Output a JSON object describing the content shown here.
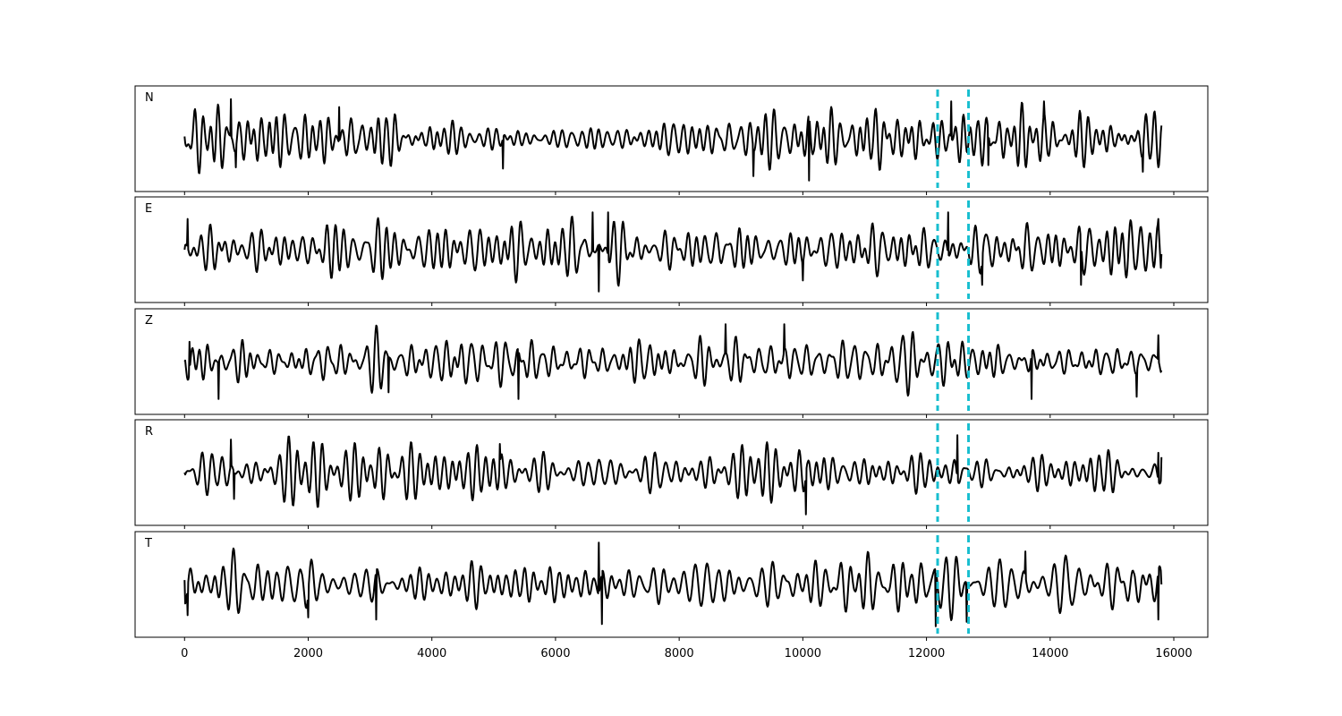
{
  "chart_data": {
    "type": "line",
    "title": "",
    "xlabel": "",
    "ylabel": "",
    "xlim": [
      -800,
      16550
    ],
    "ylim": [
      -1.2,
      1.2
    ],
    "xticks": [
      0,
      2000,
      4000,
      6000,
      8000,
      10000,
      12000,
      14000,
      16000
    ],
    "yticks_shown": false,
    "grid": false,
    "legend": "none",
    "marker_lines": {
      "x": [
        12180,
        12680
      ],
      "color": "#17becf",
      "style": "dashed"
    },
    "trace_color": "#000000",
    "n_points": 15800,
    "channels": [
      {
        "label": "N",
        "seed": 11,
        "samples": [
          {
            "x": 0,
            "y": 0.05
          },
          {
            "x": 750,
            "y": 0.9
          },
          {
            "x": 830,
            "y": -0.65
          },
          {
            "x": 2500,
            "y": 0.72
          },
          {
            "x": 5150,
            "y": -0.68
          },
          {
            "x": 9200,
            "y": -0.85
          },
          {
            "x": 10100,
            "y": -0.95
          },
          {
            "x": 12400,
            "y": 0.85
          },
          {
            "x": 13000,
            "y": -0.6
          },
          {
            "x": 13900,
            "y": 0.85
          },
          {
            "x": 15500,
            "y": -0.75
          },
          {
            "x": 15800,
            "y": 0.3
          }
        ]
      },
      {
        "label": "E",
        "seed": 23,
        "samples": [
          {
            "x": 0,
            "y": 0.0
          },
          {
            "x": 50,
            "y": 0.7
          },
          {
            "x": 6600,
            "y": 0.85
          },
          {
            "x": 6700,
            "y": -0.95
          },
          {
            "x": 6850,
            "y": 0.85
          },
          {
            "x": 10000,
            "y": -0.7
          },
          {
            "x": 12350,
            "y": 0.85
          },
          {
            "x": 12900,
            "y": -0.8
          },
          {
            "x": 14500,
            "y": -0.8
          },
          {
            "x": 15750,
            "y": 0.7
          },
          {
            "x": 15800,
            "y": -0.1
          }
        ]
      },
      {
        "label": "Z",
        "seed": 37,
        "samples": [
          {
            "x": 0,
            "y": 0.0
          },
          {
            "x": 80,
            "y": 0.45
          },
          {
            "x": 550,
            "y": -0.85
          },
          {
            "x": 3300,
            "y": -0.7
          },
          {
            "x": 5400,
            "y": -0.85
          },
          {
            "x": 8750,
            "y": 0.85
          },
          {
            "x": 9700,
            "y": 0.85
          },
          {
            "x": 13700,
            "y": -0.85
          },
          {
            "x": 15400,
            "y": -0.8
          },
          {
            "x": 15750,
            "y": 0.6
          },
          {
            "x": 15800,
            "y": -0.2
          }
        ]
      },
      {
        "label": "R",
        "seed": 53,
        "samples": [
          {
            "x": 0,
            "y": 0.0
          },
          {
            "x": 750,
            "y": 0.75
          },
          {
            "x": 800,
            "y": -0.6
          },
          {
            "x": 5100,
            "y": 0.65
          },
          {
            "x": 10050,
            "y": -0.95
          },
          {
            "x": 12500,
            "y": 0.85
          },
          {
            "x": 15750,
            "y": 0.45
          },
          {
            "x": 15800,
            "y": 0.35
          }
        ]
      },
      {
        "label": "T",
        "seed": 71,
        "samples": [
          {
            "x": 0,
            "y": 0.1
          },
          {
            "x": 50,
            "y": -0.7
          },
          {
            "x": 2000,
            "y": -0.75
          },
          {
            "x": 3100,
            "y": -0.8
          },
          {
            "x": 6700,
            "y": 0.95
          },
          {
            "x": 6750,
            "y": -0.9
          },
          {
            "x": 12150,
            "y": -0.95
          },
          {
            "x": 12650,
            "y": -0.85
          },
          {
            "x": 13600,
            "y": 0.75
          },
          {
            "x": 15750,
            "y": -0.8
          },
          {
            "x": 15800,
            "y": 0.0
          }
        ]
      }
    ]
  }
}
